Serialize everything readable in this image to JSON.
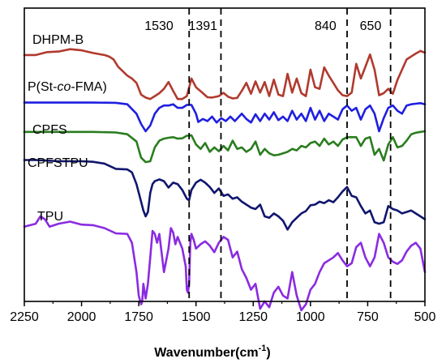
{
  "chart_data": {
    "type": "line",
    "xlabel_main": "Wavenumber(cm",
    "xlabel_sup": "-1",
    "xlabel_close": ")",
    "xlim": [
      2250,
      500
    ],
    "ylim": [
      0,
      1
    ],
    "x_ticks": [
      2250,
      2000,
      1750,
      1500,
      1250,
      1000,
      750,
      500
    ],
    "x_tick_labels": [
      "2250",
      "2000",
      "1750",
      "1500",
      "1250",
      "1000",
      "750",
      "500"
    ],
    "reference_lines": [
      {
        "x": 1530,
        "label": "1530"
      },
      {
        "x": 1391,
        "label": "1391"
      },
      {
        "x": 840,
        "label": "840"
      },
      {
        "x": 650,
        "label": "650"
      }
    ],
    "series": [
      {
        "name": "DHPM-B",
        "color": "#b03a2e",
        "x": [
          2250,
          2200,
          2150,
          2100,
          2050,
          2000,
          1950,
          1900,
          1880,
          1860,
          1840,
          1800,
          1780,
          1760,
          1740,
          1720,
          1700,
          1680,
          1660,
          1640,
          1620,
          1600,
          1580,
          1560,
          1540,
          1520,
          1500,
          1470,
          1450,
          1430,
          1400,
          1380,
          1360,
          1340,
          1320,
          1300,
          1280,
          1260,
          1240,
          1220,
          1200,
          1180,
          1160,
          1140,
          1120,
          1100,
          1080,
          1060,
          1040,
          1020,
          1000,
          980,
          960,
          940,
          920,
          900,
          880,
          860,
          840,
          820,
          800,
          780,
          760,
          740,
          720,
          700,
          680,
          660,
          640,
          620,
          600,
          580,
          560,
          540,
          520,
          500
        ],
        "y": [
          0.84,
          0.84,
          0.85,
          0.852,
          0.86,
          0.856,
          0.847,
          0.84,
          0.835,
          0.825,
          0.8,
          0.77,
          0.76,
          0.745,
          0.705,
          0.695,
          0.69,
          0.7,
          0.71,
          0.725,
          0.748,
          0.718,
          0.69,
          0.69,
          0.7,
          0.76,
          0.73,
          0.71,
          0.696,
          0.695,
          0.7,
          0.711,
          0.698,
          0.692,
          0.694,
          0.718,
          0.745,
          0.708,
          0.75,
          0.712,
          0.748,
          0.7,
          0.756,
          0.705,
          0.7,
          0.776,
          0.712,
          0.76,
          0.71,
          0.7,
          0.79,
          0.73,
          0.725,
          0.798,
          0.77,
          0.745,
          0.72,
          0.703,
          0.7,
          0.712,
          0.81,
          0.76,
          0.8,
          0.842,
          0.79,
          0.703,
          0.71,
          0.725,
          0.708,
          0.755,
          0.79,
          0.825,
          0.835,
          0.845,
          0.854,
          0.848
        ]
      },
      {
        "name": "P(St-co-FMA)",
        "color": "#1f1fe0",
        "x": [
          2250,
          2150,
          2050,
          1950,
          1850,
          1800,
          1760,
          1740,
          1720,
          1700,
          1680,
          1660,
          1640,
          1620,
          1600,
          1580,
          1560,
          1540,
          1520,
          1500,
          1490,
          1470,
          1450,
          1430,
          1410,
          1390,
          1370,
          1350,
          1330,
          1300,
          1280,
          1260,
          1240,
          1220,
          1200,
          1180,
          1160,
          1140,
          1120,
          1100,
          1080,
          1060,
          1040,
          1020,
          1000,
          980,
          960,
          940,
          920,
          900,
          880,
          860,
          840,
          820,
          800,
          780,
          760,
          740,
          720,
          700,
          680,
          660,
          640,
          620,
          600,
          580,
          560,
          540,
          520,
          500
        ],
        "y": [
          0.678,
          0.678,
          0.678,
          0.678,
          0.677,
          0.672,
          0.64,
          0.605,
          0.58,
          0.6,
          0.64,
          0.66,
          0.668,
          0.668,
          0.672,
          0.66,
          0.66,
          0.67,
          0.67,
          0.64,
          0.612,
          0.622,
          0.615,
          0.63,
          0.61,
          0.625,
          0.615,
          0.63,
          0.615,
          0.64,
          0.622,
          0.61,
          0.638,
          0.615,
          0.64,
          0.62,
          0.645,
          0.618,
          0.63,
          0.615,
          0.65,
          0.62,
          0.64,
          0.615,
          0.66,
          0.62,
          0.65,
          0.615,
          0.64,
          0.63,
          0.62,
          0.655,
          0.668,
          0.65,
          0.66,
          0.62,
          0.655,
          0.668,
          0.64,
          0.58,
          0.625,
          0.66,
          0.668,
          0.65,
          0.64,
          0.668,
          0.672,
          0.674,
          0.676,
          0.672
        ]
      },
      {
        "name": "CPFS",
        "color": "#2a7d1e",
        "x": [
          2250,
          2150,
          2050,
          1950,
          1850,
          1800,
          1760,
          1740,
          1720,
          1700,
          1680,
          1660,
          1640,
          1620,
          1600,
          1580,
          1560,
          1540,
          1520,
          1500,
          1480,
          1460,
          1440,
          1420,
          1400,
          1380,
          1360,
          1340,
          1320,
          1300,
          1280,
          1260,
          1240,
          1220,
          1200,
          1180,
          1160,
          1140,
          1120,
          1100,
          1080,
          1060,
          1040,
          1020,
          1000,
          980,
          960,
          940,
          920,
          900,
          880,
          860,
          840,
          820,
          800,
          780,
          760,
          740,
          720,
          700,
          680,
          660,
          640,
          620,
          600,
          580,
          560,
          540,
          520,
          500
        ],
        "y": [
          0.578,
          0.578,
          0.578,
          0.578,
          0.576,
          0.57,
          0.545,
          0.49,
          0.475,
          0.478,
          0.525,
          0.548,
          0.555,
          0.558,
          0.56,
          0.555,
          0.556,
          0.565,
          0.566,
          0.535,
          0.52,
          0.54,
          0.51,
          0.525,
          0.512,
          0.53,
          0.515,
          0.548,
          0.52,
          0.525,
          0.51,
          0.52,
          0.545,
          0.5,
          0.52,
          0.505,
          0.498,
          0.5,
          0.505,
          0.51,
          0.52,
          0.515,
          0.53,
          0.525,
          0.54,
          0.545,
          0.53,
          0.555,
          0.535,
          0.545,
          0.53,
          0.552,
          0.56,
          0.56,
          0.56,
          0.53,
          0.555,
          0.56,
          0.5,
          0.52,
          0.48,
          0.535,
          0.56,
          0.525,
          0.53,
          0.548,
          0.57,
          0.575,
          0.578,
          0.58
        ]
      },
      {
        "name": "CPFSTPU",
        "color": "#10166e",
        "x": [
          2250,
          2200,
          2150,
          2100,
          2050,
          2000,
          1950,
          1900,
          1850,
          1800,
          1780,
          1760,
          1740,
          1730,
          1720,
          1710,
          1700,
          1690,
          1680,
          1660,
          1640,
          1620,
          1600,
          1580,
          1560,
          1540,
          1530,
          1520,
          1500,
          1480,
          1460,
          1440,
          1420,
          1400,
          1380,
          1360,
          1340,
          1320,
          1300,
          1280,
          1260,
          1240,
          1220,
          1200,
          1180,
          1160,
          1140,
          1120,
          1100,
          1080,
          1060,
          1040,
          1020,
          1000,
          980,
          960,
          940,
          920,
          900,
          880,
          860,
          840,
          820,
          800,
          780,
          760,
          740,
          720,
          700,
          680,
          660,
          640,
          620,
          600,
          580,
          560,
          540,
          520,
          500
        ],
        "y": [
          0.482,
          0.482,
          0.48,
          0.478,
          0.478,
          0.478,
          0.476,
          0.47,
          0.452,
          0.45,
          0.44,
          0.4,
          0.34,
          0.31,
          0.29,
          0.305,
          0.37,
          0.4,
          0.41,
          0.416,
          0.41,
          0.388,
          0.405,
          0.4,
          0.38,
          0.35,
          0.345,
          0.38,
          0.405,
          0.415,
          0.405,
          0.39,
          0.37,
          0.385,
          0.36,
          0.365,
          0.35,
          0.355,
          0.34,
          0.33,
          0.32,
          0.315,
          0.33,
          0.29,
          0.285,
          0.3,
          0.29,
          0.275,
          0.245,
          0.27,
          0.285,
          0.3,
          0.308,
          0.328,
          0.33,
          0.34,
          0.335,
          0.345,
          0.338,
          0.355,
          0.375,
          0.39,
          0.36,
          0.355,
          0.325,
          0.3,
          0.31,
          0.27,
          0.265,
          0.27,
          0.325,
          0.315,
          0.31,
          0.3,
          0.305,
          0.31,
          0.3,
          0.29,
          0.28
        ]
      },
      {
        "name": "TPU",
        "color": "#8a2be2",
        "x": [
          2250,
          2200,
          2180,
          2160,
          2140,
          2100,
          2050,
          2000,
          1950,
          1900,
          1850,
          1800,
          1780,
          1760,
          1750,
          1740,
          1735,
          1730,
          1720,
          1710,
          1700,
          1690,
          1680,
          1670,
          1660,
          1640,
          1620,
          1610,
          1600,
          1590,
          1580,
          1560,
          1545,
          1540,
          1535,
          1530,
          1525,
          1520,
          1510,
          1500,
          1480,
          1460,
          1440,
          1420,
          1400,
          1380,
          1360,
          1340,
          1320,
          1300,
          1280,
          1260,
          1240,
          1220,
          1200,
          1180,
          1160,
          1140,
          1120,
          1100,
          1080,
          1060,
          1040,
          1020,
          1000,
          980,
          960,
          940,
          920,
          900,
          880,
          860,
          840,
          820,
          800,
          780,
          760,
          740,
          720,
          700,
          680,
          660,
          640,
          620,
          600,
          580,
          560,
          540,
          520,
          500
        ],
        "y": [
          0.255,
          0.265,
          0.29,
          0.28,
          0.255,
          0.265,
          0.272,
          0.262,
          0.26,
          0.25,
          0.232,
          0.23,
          0.2,
          0.1,
          0.02,
          -0.01,
          0.0,
          0.06,
          0.01,
          0.06,
          0.15,
          0.24,
          0.23,
          0.2,
          0.23,
          0.1,
          0.18,
          0.25,
          0.235,
          0.195,
          0.22,
          0.18,
          0.12,
          0.04,
          0.03,
          0.06,
          0.2,
          0.23,
          0.21,
          0.18,
          0.195,
          0.205,
          0.19,
          0.168,
          0.2,
          0.22,
          0.21,
          0.15,
          0.17,
          0.11,
          0.08,
          0.04,
          0.06,
          -0.025,
          0.0,
          -0.02,
          0.03,
          0.05,
          0.02,
          0.01,
          0.1,
          0.02,
          -0.03,
          -0.01,
          0.04,
          0.06,
          0.1,
          0.13,
          0.14,
          0.15,
          0.165,
          0.14,
          0.12,
          0.13,
          0.185,
          0.2,
          0.15,
          0.12,
          0.15,
          0.23,
          0.2,
          0.15,
          0.135,
          0.128,
          0.14,
          0.17,
          0.19,
          0.2,
          0.18,
          0.1
        ]
      }
    ]
  }
}
